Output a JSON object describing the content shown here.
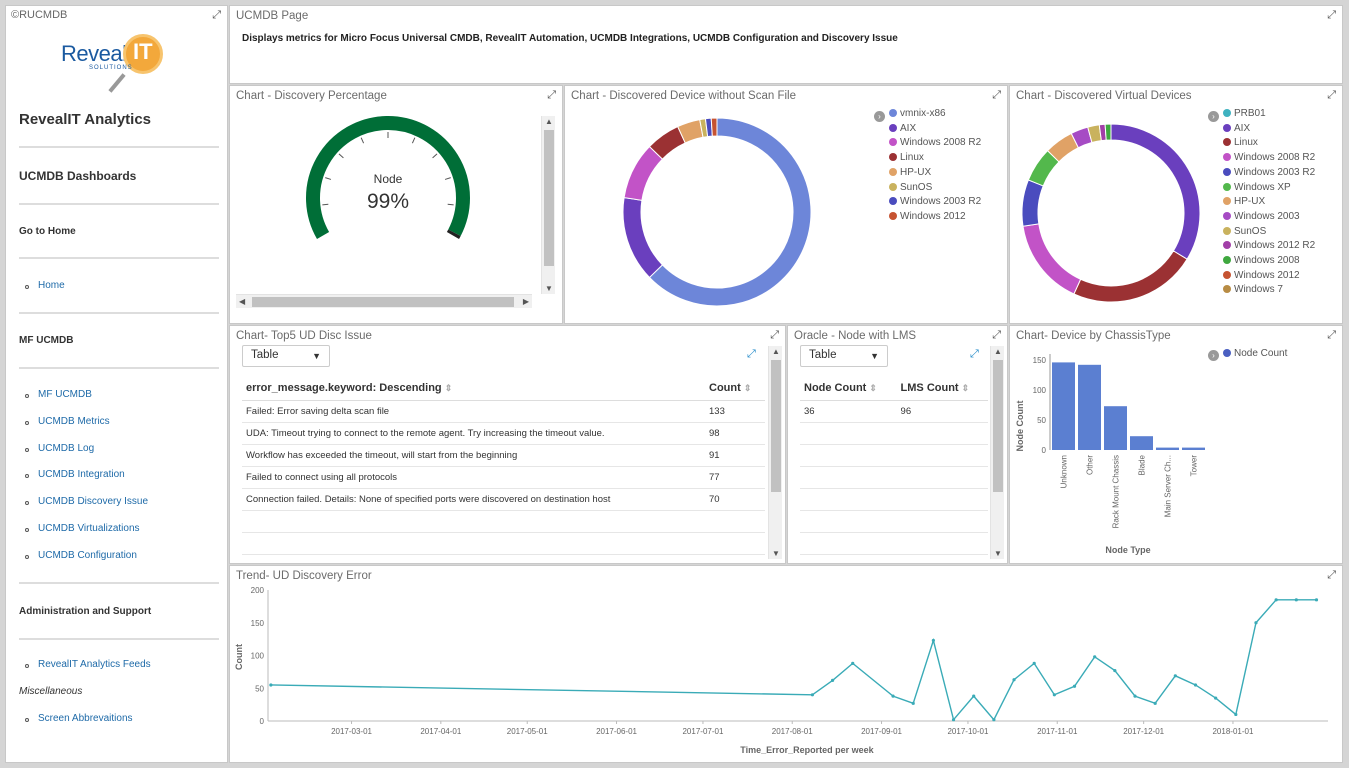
{
  "sidebar": {
    "copyright": "©RUCMDB",
    "logo_text": "Reveal",
    "logo_text2": "IT",
    "logo_sub": "SOLUTIONS",
    "title": "RevealIT Analytics",
    "section_dashboards": "UCMDB Dashboards",
    "go_home": "Go to Home",
    "home_link": "Home",
    "mf_ucmdb": "MF UCMDB",
    "links": [
      "MF UCMDB",
      "UCMDB Metrics",
      "UCMDB Log",
      "UCMDB Integration",
      "UCMDB Discovery Issue",
      "UCMDB Virtualizations",
      "UCMDB Configuration"
    ],
    "admin": "Administration and Support",
    "feeds_link": "RevealIT Analytics Feeds",
    "misc": "Miscellaneous",
    "abbrev_link": "Screen Abbrevaitions"
  },
  "header": {
    "title": "UCMDB Page",
    "description": "Displays metrics for Micro Focus Universal CMDB, RevealIT Automation, UCMDB Integrations, UCMDB Configuration and Discovery Issue"
  },
  "gauge": {
    "title": "Chart - Discovery Percentage",
    "label": "Node",
    "value_text": "99%",
    "value": 0.99,
    "color": "#006e37"
  },
  "donut1": {
    "title": "Chart - Discovered Device without Scan File",
    "legend": [
      "vmnix-x86",
      "AIX",
      "Windows 2008 R2",
      "Linux",
      "HP-UX",
      "SunOS",
      "Windows 2003 R2",
      "Windows 2012"
    ],
    "colors": [
      "#6d86d9",
      "#6a3fbe",
      "#c253c7",
      "#9b3133",
      "#e0a266",
      "#c9b25e",
      "#4a4cbe",
      "#c65331"
    ],
    "values": [
      64,
      15,
      10,
      6,
      4,
      1,
      1,
      1
    ]
  },
  "donut2": {
    "title": "Chart - Discovered Virtual Devices",
    "legend": [
      "PRB01",
      "AIX",
      "Linux",
      "Windows 2008 R2",
      "Windows 2003 R2",
      "Windows XP",
      "HP-UX",
      "Windows 2003",
      "SunOS",
      "Windows 2012 R2",
      "Windows 2008",
      "Windows 2012",
      "Windows 7"
    ],
    "colors": [
      "#3fb2c0",
      "#6a3fbe",
      "#9b3133",
      "#c253c7",
      "#4a4cbe",
      "#53b84c",
      "#e0a266",
      "#a64bc4",
      "#c9b25e",
      "#a23fa8",
      "#3fa83f",
      "#c65331",
      "#b88c44"
    ],
    "outer_values": [
      32,
      22,
      15,
      8,
      6,
      5,
      3,
      2,
      1,
      1
    ],
    "outer_colors": [
      "#6a3fbe",
      "#9b3133",
      "#c253c7",
      "#4a4cbe",
      "#53b84c",
      "#e0a266",
      "#a64bc4",
      "#c9b25e",
      "#a23fa8",
      "#3fa83f"
    ]
  },
  "top5": {
    "title": "Chart- Top5 UD Disc Issue",
    "select_value": "Table",
    "col1": "error_message.keyword: Descending",
    "col2": "Count",
    "rows": [
      [
        "Failed: Error saving delta scan file",
        "133"
      ],
      [
        "UDA: Timeout trying to connect to the remote agent. Try increasing the timeout value.",
        "98"
      ],
      [
        "Workflow has exceeded the timeout, will start from the beginning",
        "91"
      ],
      [
        "Failed to connect using all protocols",
        "77"
      ],
      [
        "Connection failed. Details: None of specified ports were discovered on destination host",
        "70"
      ]
    ]
  },
  "oracle": {
    "title": "Oracle - Node with LMS",
    "select_value": "Table",
    "col1": "Node Count",
    "col2": "LMS Count",
    "rows": [
      [
        "36",
        "96"
      ]
    ]
  },
  "chassis": {
    "title": "Chart- Device by ChassisType",
    "legend": "Node Count",
    "ylabel": "Node Count",
    "xlabel": "Node Type",
    "yticks": [
      "150",
      "100",
      "50",
      "0"
    ],
    "color": "#5b7fd1"
  },
  "trend": {
    "title": "Trend- UD Discovery Error",
    "ylabel": "Count",
    "xlabel": "Time_Error_Reported per week",
    "yticks": [
      "200",
      "150",
      "100",
      "50",
      "0"
    ],
    "xticks": [
      "2017-03-01",
      "2017-04-01",
      "2017-05-01",
      "2017-06-01",
      "2017-07-01",
      "2017-08-01",
      "2017-09-01",
      "2017-10-01",
      "2017-11-01",
      "2017-12-01",
      "2018-01-01"
    ],
    "color": "#3aabb7"
  },
  "chart_data": [
    {
      "type": "bar",
      "title": "Chart- Device by ChassisType",
      "categories": [
        "Unknown",
        "Other",
        "Rack Mount Chassis",
        "Blade",
        "Main Server Ch...",
        "Tower"
      ],
      "series": [
        {
          "name": "Node Count",
          "values": [
            146,
            142,
            73,
            23,
            4,
            4
          ]
        }
      ],
      "xlabel": "Node Type",
      "ylabel": "Node Count",
      "ylim": [
        0,
        160
      ]
    },
    {
      "type": "line",
      "title": "Trend- UD Discovery Error",
      "x": [
        "2017-02-01",
        "2017-08-08",
        "2017-08-15",
        "2017-08-22",
        "2017-09-05",
        "2017-09-12",
        "2017-09-19",
        "2017-09-26",
        "2017-10-03",
        "2017-10-10",
        "2017-10-17",
        "2017-10-24",
        "2017-10-31",
        "2017-11-07",
        "2017-11-14",
        "2017-11-21",
        "2017-11-28",
        "2017-12-05",
        "2017-12-12",
        "2017-12-19",
        "2017-12-26",
        "2018-01-02",
        "2018-01-09",
        "2018-01-16",
        "2018-01-23",
        "2018-01-30"
      ],
      "series": [
        {
          "values": [
            55,
            40,
            62,
            88,
            38,
            27,
            123,
            2,
            38,
            2,
            63,
            88,
            40,
            53,
            98,
            77,
            38,
            27,
            69,
            55,
            35,
            10,
            150,
            185,
            185,
            185
          ]
        }
      ],
      "xlabel": "Time_Error_Reported per week",
      "ylabel": "Count",
      "ylim": [
        0,
        200
      ]
    }
  ]
}
